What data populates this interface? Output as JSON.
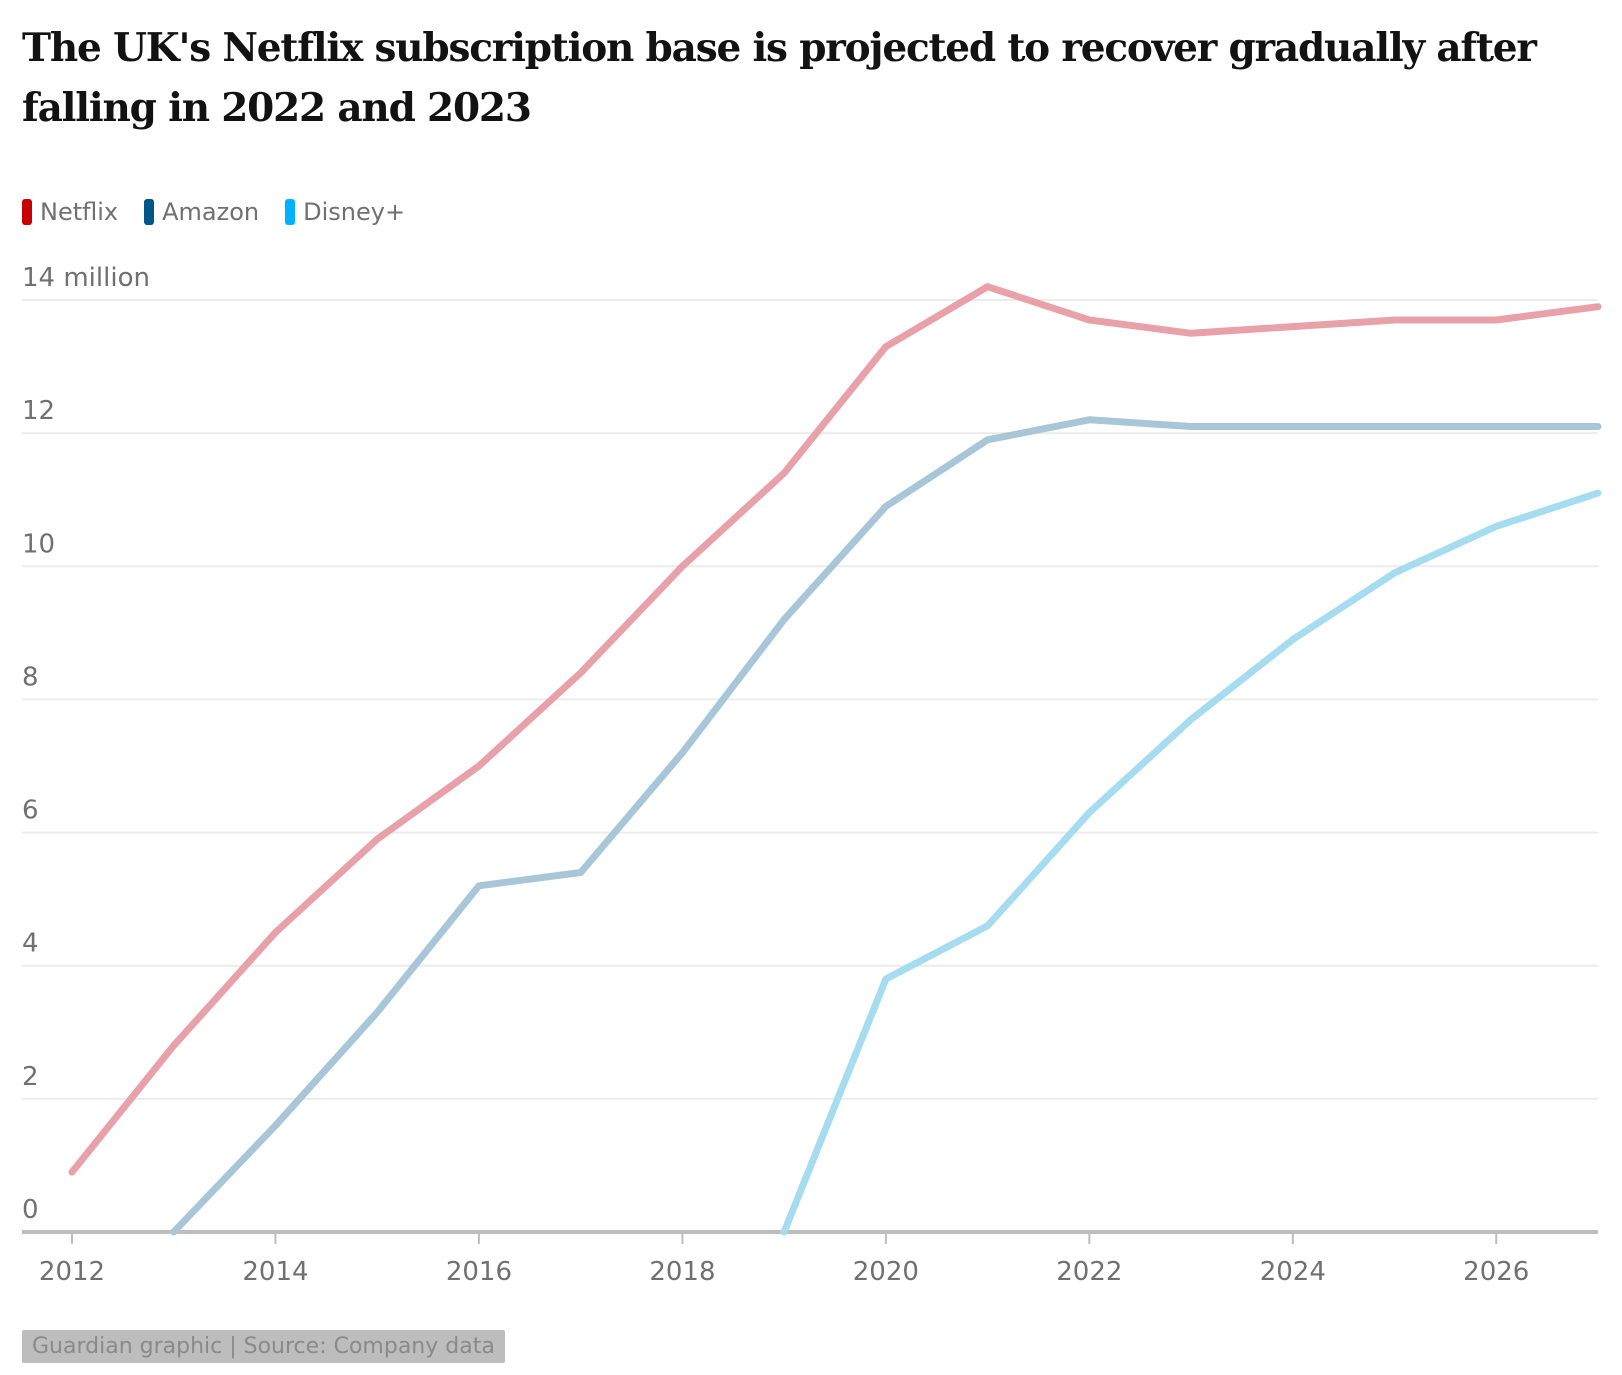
{
  "chart_data": {
    "type": "line",
    "title": "The UK's Netflix subscription base is projected to recover gradually after falling in 2022 and 2023",
    "y_unit_label": "14 million",
    "ylim": [
      0,
      14
    ],
    "y_ticks": [
      0,
      2,
      4,
      6,
      8,
      10,
      12,
      14
    ],
    "y_tick_labels": [
      "0",
      "2",
      "4",
      "6",
      "8",
      "10",
      "12",
      "14 million"
    ],
    "xlim": [
      2012,
      2027
    ],
    "x_ticks": [
      2012,
      2014,
      2016,
      2018,
      2020,
      2022,
      2024,
      2026
    ],
    "x_tick_labels": [
      "2012",
      "2014",
      "2016",
      "2018",
      "2020",
      "2022",
      "2024",
      "2026"
    ],
    "grid": true,
    "legend_position": "top-left",
    "series": [
      {
        "name": "Netflix",
        "color": "#e8a1a9",
        "legend_color": "#c70000",
        "x": [
          2012,
          2013,
          2014,
          2015,
          2016,
          2017,
          2018,
          2019,
          2020,
          2021,
          2022,
          2023,
          2024,
          2025,
          2026,
          2027
        ],
        "values": [
          0.9,
          2.8,
          4.5,
          5.9,
          7.0,
          8.4,
          10.0,
          11.4,
          13.3,
          14.2,
          13.7,
          13.5,
          13.6,
          13.7,
          13.7,
          13.9
        ]
      },
      {
        "name": "Amazon",
        "color": "#a9c6d8",
        "legend_color": "#005689",
        "x": [
          2013,
          2014,
          2015,
          2016,
          2017,
          2018,
          2019,
          2020,
          2021,
          2022,
          2023,
          2024,
          2025,
          2026,
          2027
        ],
        "values": [
          0.0,
          1.6,
          3.3,
          5.2,
          5.4,
          7.2,
          9.2,
          10.9,
          11.9,
          12.2,
          12.1,
          12.1,
          12.1,
          12.1,
          12.1
        ]
      },
      {
        "name": "Disney+",
        "color": "#a6dcf0",
        "legend_color": "#00b2ff",
        "x": [
          2019,
          2020,
          2021,
          2022,
          2023,
          2024,
          2025,
          2026,
          2027
        ],
        "values": [
          0.0,
          3.8,
          4.6,
          6.3,
          7.7,
          8.9,
          9.9,
          10.6,
          11.1
        ]
      }
    ]
  },
  "source": {
    "text": "Guardian graphic | Source: Company data"
  }
}
